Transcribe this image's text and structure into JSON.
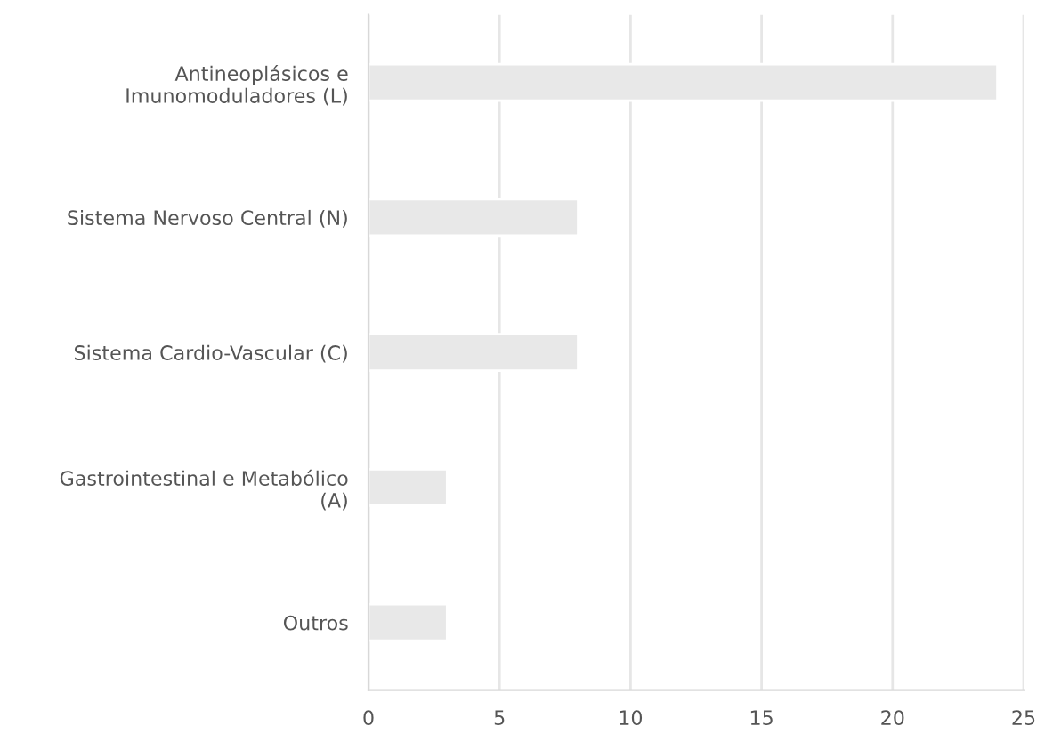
{
  "chart_data": {
    "type": "bar",
    "orientation": "horizontal",
    "categories": [
      "Antineoplásicos e\nImunomoduladores (L)",
      "Sistema Nervoso Central (N)",
      "Sistema Cardio-Vascular (C)",
      "Gastrointestinal e Metabólico\n(A)",
      "Outros"
    ],
    "values": [
      24,
      8,
      8,
      3,
      3
    ],
    "color": "#e8e8e8",
    "xlim": [
      0,
      25
    ],
    "xticks": [
      0,
      5,
      10,
      15,
      20,
      25
    ],
    "grid": "x",
    "legend": false
  }
}
